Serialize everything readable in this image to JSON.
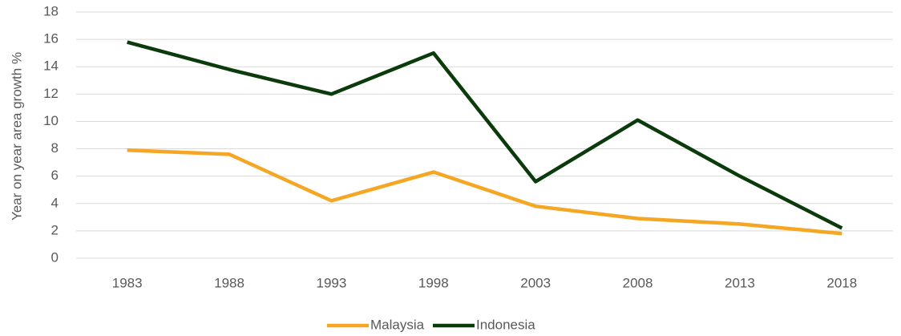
{
  "chart_data": {
    "type": "line",
    "y_label": "Year on year area growth %",
    "categories": [
      "1983",
      "1988",
      "1993",
      "1998",
      "2003",
      "2008",
      "2013",
      "2018"
    ],
    "series": [
      {
        "name": "Malaysia",
        "color": "#f5a623",
        "values": [
          7.9,
          7.6,
          4.2,
          6.3,
          3.8,
          2.9,
          2.5,
          1.8
        ]
      },
      {
        "name": "Indonesia",
        "color": "#0b3a0b",
        "values": [
          15.8,
          13.8,
          12.0,
          15.0,
          5.6,
          10.1,
          6.0,
          2.2
        ]
      }
    ],
    "ylim": [
      0,
      18
    ],
    "yticks": [
      0,
      2,
      4,
      6,
      8,
      10,
      12,
      14,
      16,
      18
    ],
    "grid": true,
    "legend": "bottom"
  }
}
